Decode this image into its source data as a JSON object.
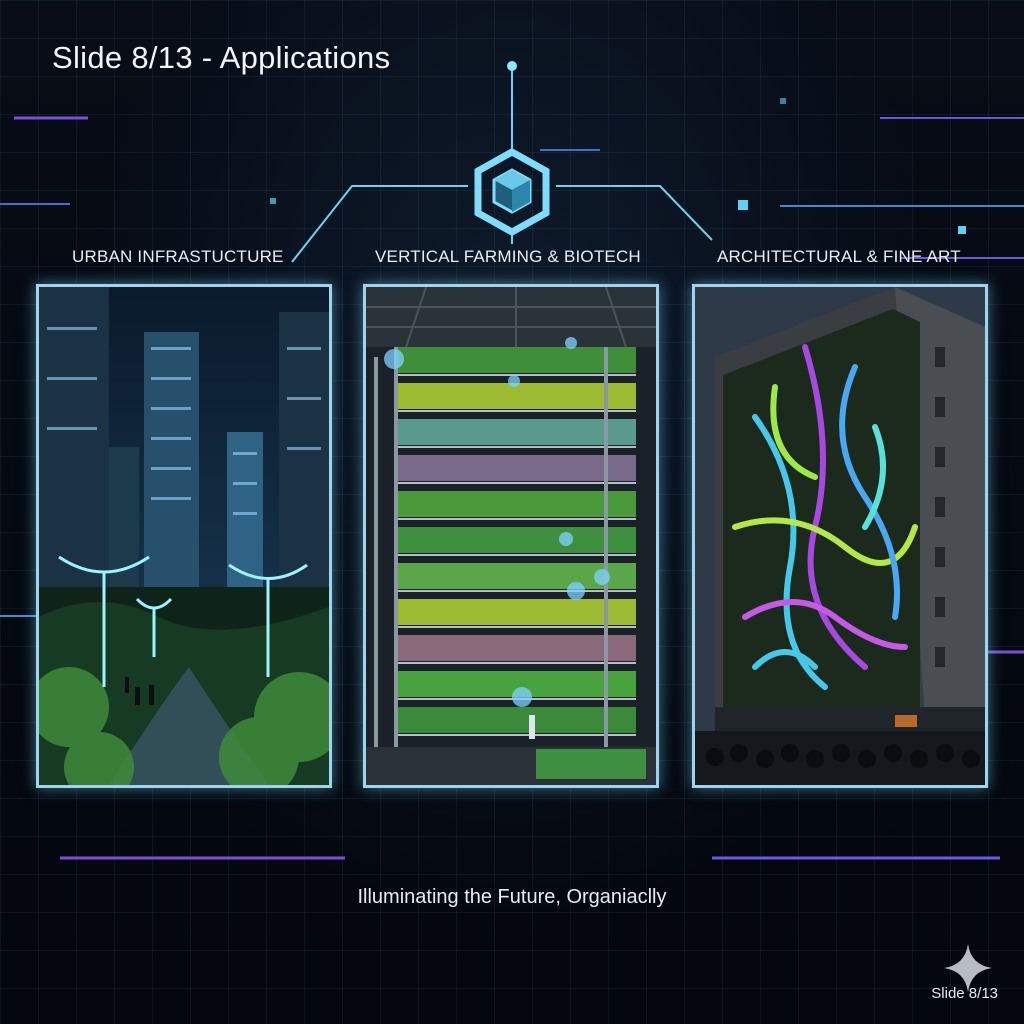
{
  "slide": {
    "title": "Slide 8/13 - Applications",
    "tagline": "Illuminating the Future, Organiaclly",
    "footer": "Slide 8/13"
  },
  "panels": [
    {
      "label": "URBAN INFRASTUCTURE",
      "image": "night city park with glowing tree structures"
    },
    {
      "label": "VERTICAL FARMING & BIOTECH",
      "image": "multi-level indoor vertical farm"
    },
    {
      "label": "ARCHITECTURAL & FINE ART",
      "image": "building facade with glowing living mural and crowd"
    }
  ],
  "icons": {
    "hub": "hexagon-cube-icon",
    "corner": "sparkle-star-icon"
  },
  "colors": {
    "background": "#05080f",
    "accent": "#5fd0f0",
    "frame": "#9fd4ec",
    "purple_line": "#7a4fd8",
    "text": "#f2f6fb"
  }
}
